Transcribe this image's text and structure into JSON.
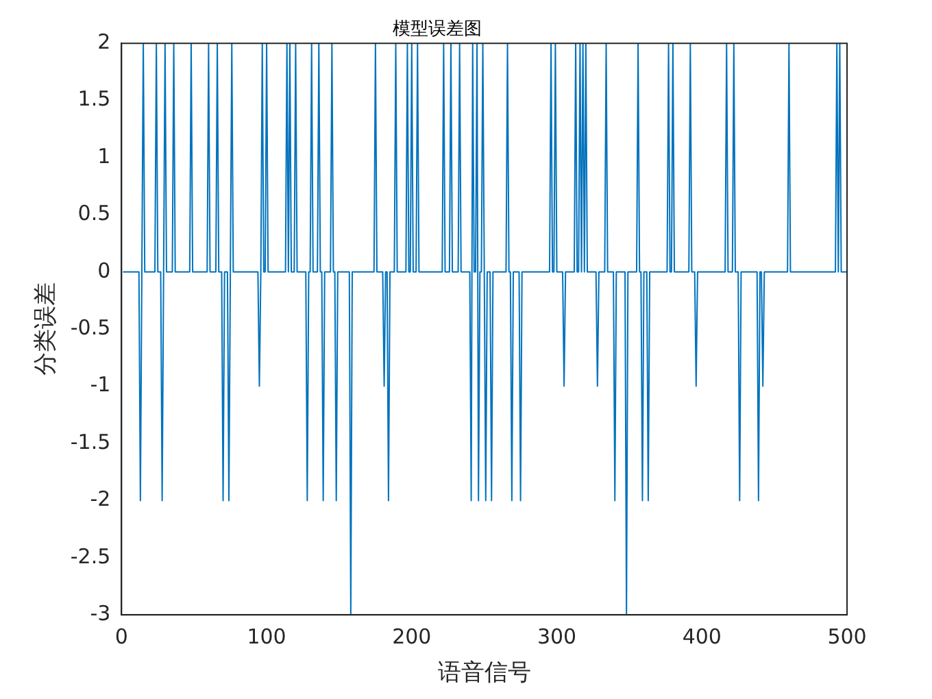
{
  "chart_data": {
    "type": "line",
    "title": "模型误差图",
    "xlabel": "语音信号",
    "ylabel": "分类误差",
    "xlim": [
      0,
      500
    ],
    "xticks": [
      0,
      100,
      200,
      300,
      400,
      500
    ],
    "ylim": [
      -3,
      2
    ],
    "yticks": [
      -3,
      -2.5,
      -2,
      -1.5,
      -1,
      -0.5,
      0,
      0.5,
      1,
      1.5,
      2
    ],
    "grid": false,
    "legend": false,
    "marker": "none",
    "line_style": "solid",
    "series": [
      {
        "color": "#0072bd",
        "x": [
          1,
          12,
          13,
          14,
          15,
          16,
          23,
          24,
          25,
          27,
          28,
          29,
          30,
          31,
          35,
          36,
          37,
          47,
          48,
          49,
          59,
          60,
          61,
          65,
          66,
          67,
          69,
          70,
          71,
          73,
          74,
          75,
          76,
          77,
          94,
          95,
          96,
          97,
          98,
          99,
          100,
          101,
          113,
          114,
          115,
          116,
          117,
          119,
          120,
          121,
          127,
          128,
          129,
          130,
          131,
          132,
          135,
          136,
          137,
          138,
          139,
          140,
          144,
          145,
          146,
          147,
          148,
          149,
          157,
          158,
          159,
          174,
          175,
          176,
          180,
          181,
          182,
          183,
          184,
          185,
          188,
          189,
          190,
          196,
          197,
          198,
          199,
          200,
          201,
          203,
          204,
          205,
          221,
          222,
          223,
          226,
          227,
          228,
          232,
          233,
          234,
          240,
          241,
          242,
          243,
          244,
          245,
          246,
          247,
          248,
          249,
          250,
          251,
          252,
          254,
          255,
          256,
          265,
          266,
          267,
          268,
          269,
          270,
          274,
          275,
          276,
          295,
          296,
          297,
          298,
          299,
          300,
          304,
          305,
          306,
          312,
          313,
          314,
          315,
          316,
          317,
          318,
          319,
          320,
          321,
          327,
          328,
          329,
          333,
          334,
          335,
          339,
          340,
          341,
          347,
          348,
          349,
          355,
          356,
          357,
          358,
          359,
          360,
          362,
          363,
          364,
          376,
          377,
          378,
          379,
          380,
          381,
          391,
          392,
          393,
          395,
          396,
          397,
          416,
          417,
          418,
          421,
          422,
          423,
          425,
          426,
          427,
          438,
          439,
          440,
          441,
          442,
          443,
          459,
          460,
          461,
          492,
          493,
          494,
          495,
          496,
          500
        ],
        "values": [
          0,
          0,
          -2,
          0,
          2,
          0,
          0,
          2,
          0,
          0,
          -2,
          0,
          2,
          0,
          0,
          2,
          0,
          0,
          2,
          0,
          0,
          2,
          0,
          0,
          2,
          0,
          0,
          -2,
          0,
          0,
          -2,
          0,
          2,
          0,
          0,
          -1,
          0,
          2,
          0,
          0,
          2,
          0,
          0,
          2,
          0,
          2,
          0,
          0,
          2,
          0,
          0,
          -2,
          0,
          0,
          2,
          0,
          0,
          2,
          0,
          0,
          -2,
          0,
          0,
          2,
          0,
          0,
          -2,
          0,
          0,
          -3,
          0,
          0,
          2,
          0,
          0,
          -1,
          0,
          0,
          -2,
          0,
          0,
          2,
          0,
          0,
          2,
          0,
          0,
          2,
          0,
          0,
          2,
          0,
          0,
          2,
          0,
          0,
          2,
          0,
          0,
          2,
          0,
          0,
          -2,
          2,
          0,
          0,
          2,
          -2,
          0,
          0,
          2,
          0,
          -2,
          0,
          0,
          -2,
          0,
          0,
          2,
          0,
          0,
          -2,
          0,
          0,
          -2,
          0,
          0,
          2,
          0,
          0,
          2,
          0,
          0,
          -1,
          0,
          0,
          2,
          0,
          0,
          2,
          0,
          2,
          0,
          2,
          0,
          0,
          -1,
          0,
          0,
          2,
          0,
          0,
          -2,
          0,
          0,
          -3,
          0,
          0,
          2,
          0,
          0,
          -2,
          0,
          0,
          -2,
          0,
          0,
          2,
          0,
          0,
          2,
          0,
          0,
          2,
          0,
          0,
          -1,
          0,
          0,
          2,
          0,
          0,
          2,
          0,
          0,
          -2,
          0,
          0,
          -2,
          0,
          0,
          -1,
          0,
          0,
          2,
          0,
          0,
          2,
          0,
          2,
          0,
          0
        ]
      }
    ]
  }
}
